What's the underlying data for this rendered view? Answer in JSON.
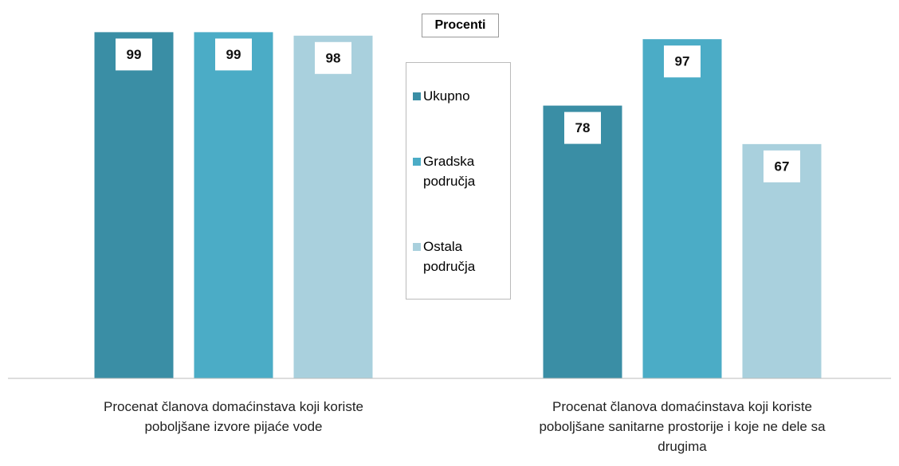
{
  "chart_data": {
    "type": "bar",
    "title": "Procenti",
    "categories": [
      "Procenat članova domaćinstava koji koriste poboljšane izvore pijaće vode",
      "Procenat članova domaćinstava koji koriste poboljšane sanitarne prostorije i koje ne dele sa drugima"
    ],
    "series": [
      {
        "name": "Ukupno",
        "color": "#3a8ea5",
        "values": [
          99,
          78
        ]
      },
      {
        "name": "Gradska područja",
        "color": "#4bacc6",
        "values": [
          99,
          97
        ]
      },
      {
        "name": "Ostala područja",
        "color": "#a9d0dd",
        "values": [
          98,
          67
        ]
      }
    ],
    "ylim": [
      0,
      100
    ]
  }
}
